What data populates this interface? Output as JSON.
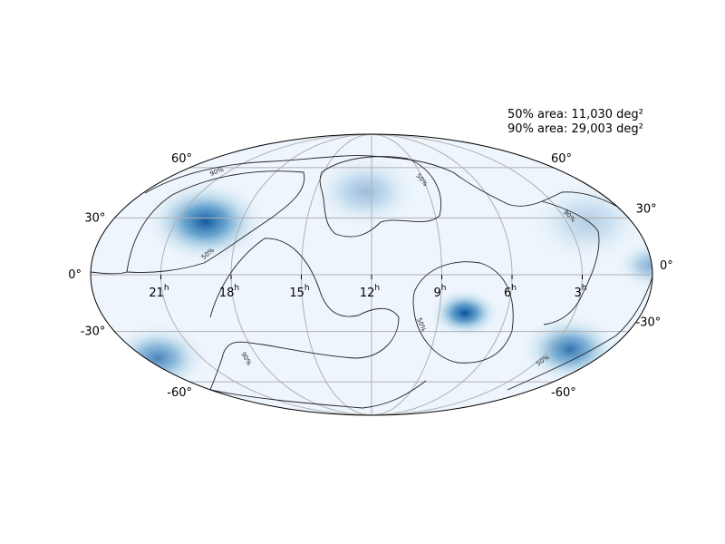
{
  "stats": {
    "area_50": "50% area: 11,030 deg²",
    "area_90": "90% area: 29,003 deg²"
  },
  "map": {
    "projection": "mollweide",
    "colormap": "Blues",
    "ra_ticks": [
      {
        "label": "21",
        "unit": "h",
        "ra_deg": 315
      },
      {
        "label": "18",
        "unit": "h",
        "ra_deg": 270
      },
      {
        "label": "15",
        "unit": "h",
        "ra_deg": 225
      },
      {
        "label": "12",
        "unit": "h",
        "ra_deg": 180
      },
      {
        "label": "9",
        "unit": "h",
        "ra_deg": 135
      },
      {
        "label": "6",
        "unit": "h",
        "ra_deg": 90
      },
      {
        "label": "3",
        "unit": "h",
        "ra_deg": 45
      }
    ],
    "dec_ticks_left": [
      {
        "label": "60°",
        "dec": 60
      },
      {
        "label": "30°",
        "dec": 30
      },
      {
        "label": "0°",
        "dec": 0
      },
      {
        "label": "-30°",
        "dec": -30
      },
      {
        "label": "-60°",
        "dec": -60
      }
    ],
    "dec_ticks_right": [
      {
        "label": "60°",
        "dec": 60
      },
      {
        "label": "30°",
        "dec": 30
      },
      {
        "label": "0°",
        "dec": 0
      },
      {
        "label": "-30°",
        "dec": -30
      },
      {
        "label": "-60°",
        "dec": -60
      }
    ],
    "contour_labels": [
      {
        "text": "90%",
        "level": 90
      },
      {
        "text": "50%",
        "level": 50
      },
      {
        "text": "50%",
        "level": 50
      },
      {
        "text": "90%",
        "level": 90
      },
      {
        "text": "50%",
        "level": 50
      },
      {
        "text": "90%",
        "level": 90
      },
      {
        "text": "50%",
        "level": 50
      }
    ],
    "probability_blobs": [
      {
        "ra": 295,
        "dec": 28,
        "spread": 24,
        "intensity": 0.95
      },
      {
        "ra": 118,
        "dec": -20,
        "spread": 14,
        "intensity": 1.0
      },
      {
        "ra": 30,
        "dec": -40,
        "spread": 20,
        "intensity": 0.8
      },
      {
        "ra": 350,
        "dec": -45,
        "spread": 20,
        "intensity": 0.7
      },
      {
        "ra": 185,
        "dec": 45,
        "spread": 22,
        "intensity": 0.35
      },
      {
        "ra": 30,
        "dec": 28,
        "spread": 25,
        "intensity": 0.25
      },
      {
        "ra": 0,
        "dec": 5,
        "spread": 15,
        "intensity": 0.45
      }
    ]
  }
}
